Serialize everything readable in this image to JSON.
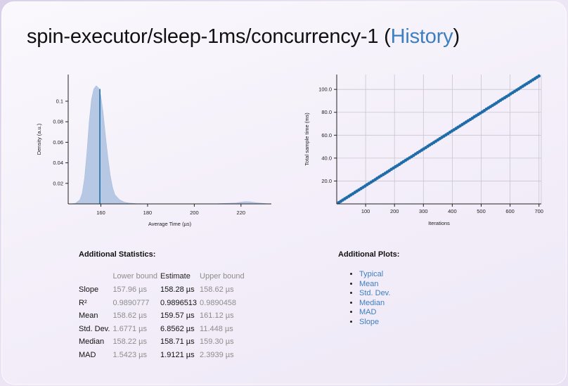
{
  "title": {
    "main": "spin-executor/sleep-1ms/concurrency-1 (",
    "link": "History",
    "close": ")"
  },
  "chart_data": [
    {
      "type": "area",
      "xlabel": "Average Time (µs)",
      "ylabel": "Density (a.u.)",
      "x_ticks": [
        "160",
        "180",
        "200",
        "220"
      ],
      "y_ticks": [
        "0.02",
        "0.04",
        "0.06",
        "0.08",
        "0.1"
      ],
      "xlim": [
        146,
        233
      ],
      "ylim": [
        0,
        0.126
      ],
      "x": [
        147,
        149,
        151,
        152,
        153,
        154,
        155,
        156,
        157,
        158,
        159,
        160,
        161,
        162,
        163,
        164,
        165,
        166,
        168,
        170,
        172,
        175,
        180,
        190,
        200,
        210,
        215,
        218,
        220,
        222,
        224,
        226,
        228,
        231
      ],
      "density": [
        0,
        0.0005,
        0.004,
        0.01,
        0.025,
        0.05,
        0.08,
        0.102,
        0.112,
        0.115,
        0.113,
        0.105,
        0.088,
        0.066,
        0.045,
        0.028,
        0.016,
        0.009,
        0.004,
        0.0018,
        0.0008,
        0.0003,
        0.0001,
        0.0001,
        0.0001,
        0.0002,
        0.0006,
        0.001,
        0.0018,
        0.0022,
        0.002,
        0.0014,
        0.0008,
        0.0002
      ],
      "mean_line": 159.57,
      "mean_line_top": 0.112,
      "fill_color": "#b7c8e4",
      "line_color": "#1f6ca8"
    },
    {
      "type": "scatter",
      "xlabel": "Iterations",
      "ylabel": "Total sample time (ms)",
      "x_ticks": [
        "100",
        "200",
        "300",
        "400",
        "500",
        "600",
        "700"
      ],
      "y_ticks": [
        "20.0",
        "40.0",
        "60.0",
        "80.0",
        "100.0"
      ],
      "xlim": [
        0,
        708
      ],
      "ylim": [
        0,
        113
      ],
      "points": [
        [
          7,
          1.1
        ],
        [
          14,
          2.2
        ],
        [
          21,
          3.4
        ],
        [
          28,
          4.5
        ],
        [
          35,
          5.6
        ],
        [
          42,
          6.7
        ],
        [
          49,
          7.8
        ],
        [
          56,
          8.9
        ],
        [
          63,
          10.1
        ],
        [
          70,
          11.2
        ],
        [
          77,
          12.3
        ],
        [
          84,
          13.4
        ],
        [
          91,
          14.5
        ],
        [
          98,
          15.6
        ],
        [
          105,
          16.8
        ],
        [
          112,
          17.9
        ],
        [
          119,
          19.0
        ],
        [
          126,
          20.1
        ],
        [
          133,
          21.2
        ],
        [
          140,
          22.4
        ],
        [
          147,
          23.5
        ],
        [
          154,
          24.6
        ],
        [
          161,
          25.7
        ],
        [
          168,
          26.8
        ],
        [
          175,
          27.9
        ],
        [
          182,
          29.0
        ],
        [
          189,
          30.2
        ],
        [
          196,
          31.3
        ],
        [
          203,
          32.4
        ],
        [
          210,
          33.5
        ],
        [
          217,
          34.6
        ],
        [
          224,
          35.8
        ],
        [
          231,
          36.9
        ],
        [
          238,
          38.0
        ],
        [
          245,
          39.1
        ],
        [
          252,
          40.2
        ],
        [
          259,
          41.3
        ],
        [
          266,
          42.4
        ],
        [
          273,
          43.6
        ],
        [
          280,
          44.7
        ],
        [
          287,
          45.8
        ],
        [
          294,
          46.9
        ],
        [
          301,
          48.0
        ],
        [
          308,
          49.1
        ],
        [
          315,
          50.3
        ],
        [
          322,
          51.4
        ],
        [
          329,
          52.5
        ],
        [
          336,
          53.6
        ],
        [
          343,
          54.7
        ],
        [
          350,
          55.9
        ],
        [
          357,
          57.0
        ],
        [
          364,
          58.1
        ],
        [
          371,
          59.2
        ],
        [
          378,
          60.3
        ],
        [
          385,
          61.4
        ],
        [
          392,
          62.6
        ],
        [
          399,
          63.7
        ],
        [
          406,
          64.8
        ],
        [
          413,
          65.9
        ],
        [
          420,
          67.0
        ],
        [
          427,
          68.1
        ],
        [
          434,
          69.3
        ],
        [
          441,
          70.4
        ],
        [
          448,
          71.5
        ],
        [
          455,
          72.6
        ],
        [
          462,
          73.7
        ],
        [
          469,
          74.8
        ],
        [
          476,
          76.0
        ],
        [
          483,
          77.1
        ],
        [
          490,
          78.2
        ],
        [
          497,
          79.3
        ],
        [
          504,
          80.4
        ],
        [
          511,
          81.5
        ],
        [
          518,
          82.7
        ],
        [
          525,
          83.8
        ],
        [
          532,
          84.9
        ],
        [
          539,
          86.0
        ],
        [
          546,
          87.1
        ],
        [
          553,
          88.2
        ],
        [
          560,
          89.4
        ],
        [
          567,
          90.5
        ],
        [
          574,
          91.6
        ],
        [
          581,
          92.7
        ],
        [
          588,
          93.8
        ],
        [
          595,
          94.9
        ],
        [
          602,
          96.1
        ],
        [
          609,
          97.2
        ],
        [
          616,
          98.3
        ],
        [
          623,
          99.4
        ],
        [
          630,
          100.5
        ],
        [
          637,
          101.7
        ],
        [
          644,
          102.8
        ],
        [
          651,
          103.9
        ],
        [
          658,
          105.0
        ],
        [
          665,
          106.1
        ],
        [
          672,
          107.2
        ],
        [
          679,
          108.4
        ],
        [
          686,
          109.5
        ],
        [
          693,
          110.6
        ],
        [
          700,
          111.7
        ]
      ],
      "point_color": "#1f6ca8",
      "grid": true
    }
  ],
  "stats": {
    "heading": "Additional Statistics:",
    "headers": [
      "Lower bound",
      "Estimate",
      "Upper bound"
    ],
    "rows": [
      {
        "name": "Slope",
        "lo": "157.96 µs",
        "est": "158.28 µs",
        "hi": "158.62 µs"
      },
      {
        "name": "R²",
        "lo": "0.9890777",
        "est": "0.9896513",
        "hi": "0.9890458"
      },
      {
        "name": "Mean",
        "lo": "158.62 µs",
        "est": "159.57 µs",
        "hi": "161.12 µs"
      },
      {
        "name": "Std. Dev.",
        "lo": "1.6771 µs",
        "est": "6.8562 µs",
        "hi": "11.448 µs"
      },
      {
        "name": "Median",
        "lo": "158.22 µs",
        "est": "158.71 µs",
        "hi": "159.30 µs"
      },
      {
        "name": "MAD",
        "lo": "1.5423 µs",
        "est": "1.9121 µs",
        "hi": "2.3939 µs"
      }
    ]
  },
  "plots": {
    "heading": "Additional Plots:",
    "items": [
      "Typical",
      "Mean",
      "Std. Dev.",
      "Median",
      "MAD",
      "Slope"
    ]
  }
}
